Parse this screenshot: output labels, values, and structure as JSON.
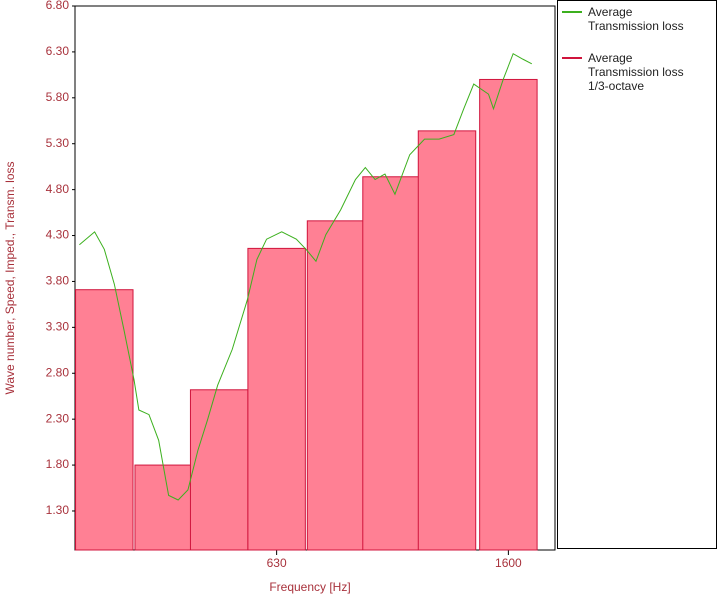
{
  "chart_data": {
    "type": "bar",
    "x_label": "Frequency [Hz]",
    "y_label": "Wave number, Speed, Imped., Transm. loss",
    "xlim": [
      280,
      1930
    ],
    "xscale": "log",
    "xticks": [
      630,
      1600
    ],
    "ylim": [
      0.875,
      6.8
    ],
    "yticks": [
      {
        "value": 1.3,
        "label": "1.30"
      },
      {
        "value": 1.8,
        "label": "1.80"
      },
      {
        "value": 2.3,
        "label": "2.30"
      },
      {
        "value": 2.8,
        "label": "2.80"
      },
      {
        "value": 3.3,
        "label": "3.30"
      },
      {
        "value": 3.8,
        "label": "3.80"
      },
      {
        "value": 4.3,
        "label": "4.30"
      },
      {
        "value": 4.8,
        "label": "4.80"
      },
      {
        "value": 5.3,
        "label": "5.30"
      },
      {
        "value": 5.8,
        "label": "5.80"
      },
      {
        "value": 6.3,
        "label": "6.30"
      },
      {
        "value": 6.8,
        "label": "6.80"
      }
    ],
    "series": [
      {
        "name": "Average Transmission loss",
        "type": "line",
        "color": "#3cb01e",
        "x": [
          285,
          303,
          315,
          328,
          341,
          355,
          362,
          377,
          392,
          408,
          424,
          441,
          459,
          477,
          497,
          527,
          560,
          582,
          605,
          643,
          682,
          709,
          738,
          768,
          815,
          865,
          900,
          936,
          974,
          1014,
          1076,
          1142,
          1211,
          1285,
          1337,
          1392,
          1477,
          1507,
          1567,
          1631,
          1697,
          1758
        ],
        "values": [
          4.2,
          4.34,
          4.15,
          3.77,
          3.27,
          2.73,
          2.4,
          2.35,
          2.07,
          1.47,
          1.42,
          1.53,
          1.96,
          2.29,
          2.67,
          3.06,
          3.6,
          4.04,
          4.26,
          4.34,
          4.26,
          4.15,
          4.02,
          4.31,
          4.58,
          4.91,
          5.04,
          4.91,
          4.97,
          4.75,
          5.18,
          5.35,
          5.35,
          5.4,
          5.68,
          5.95,
          5.84,
          5.68,
          6.0,
          6.28,
          6.22,
          6.17
        ]
      },
      {
        "name": "Average Transmission loss 1/3-octave",
        "type": "bar",
        "color": "#d0143c",
        "fill": "#ff8094",
        "x": [
          315,
          400,
          500,
          630,
          800,
          1000,
          1250,
          1600
        ],
        "values": [
          3.71,
          1.8,
          2.62,
          4.16,
          4.46,
          4.94,
          5.44,
          6.0
        ]
      }
    ]
  }
}
